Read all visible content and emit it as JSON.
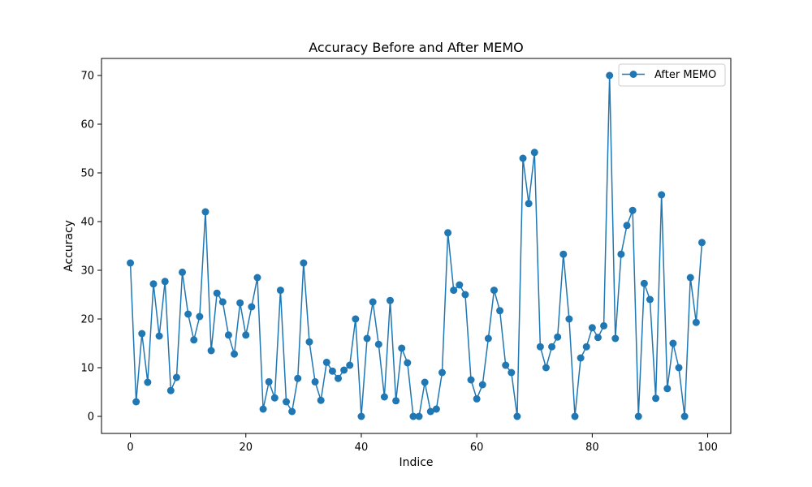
{
  "chart_data": {
    "type": "line",
    "title": "Accuracy Before and After MEMO",
    "xlabel": "Indice",
    "ylabel": "Accuracy",
    "xlim": [
      -5,
      104
    ],
    "ylim": [
      -3.5,
      73.5
    ],
    "xticks": [
      0,
      20,
      40,
      60,
      80,
      100
    ],
    "yticks": [
      0,
      10,
      20,
      30,
      40,
      50,
      60,
      70
    ],
    "grid": false,
    "legend_position": "top-right",
    "series": [
      {
        "name": "After MEMO",
        "color": "#1f77b4",
        "marker": "circle",
        "x": [
          0,
          1,
          2,
          3,
          4,
          5,
          6,
          7,
          8,
          9,
          10,
          11,
          12,
          13,
          14,
          15,
          16,
          17,
          18,
          19,
          20,
          21,
          22,
          23,
          24,
          25,
          26,
          27,
          28,
          29,
          30,
          31,
          32,
          33,
          34,
          35,
          36,
          37,
          38,
          39,
          40,
          41,
          42,
          43,
          44,
          45,
          46,
          47,
          48,
          49,
          50,
          51,
          52,
          53,
          54,
          55,
          56,
          57,
          58,
          59,
          60,
          61,
          62,
          63,
          64,
          65,
          66,
          67,
          68,
          69,
          70,
          71,
          72,
          73,
          74,
          75,
          76,
          77,
          78,
          79,
          80,
          81,
          82,
          83,
          84,
          85,
          86,
          87,
          88,
          89,
          90,
          91,
          92,
          93,
          94,
          95,
          96,
          97,
          98,
          99
        ],
        "values": [
          31.5,
          3.0,
          17.0,
          7.0,
          27.2,
          16.5,
          27.7,
          5.3,
          8.0,
          29.6,
          21.0,
          15.7,
          20.5,
          42.0,
          13.5,
          25.3,
          23.5,
          16.7,
          12.8,
          23.3,
          16.7,
          22.5,
          28.5,
          1.5,
          7.1,
          3.8,
          25.9,
          3.0,
          1.0,
          7.8,
          31.5,
          15.3,
          7.1,
          3.3,
          11.1,
          9.3,
          7.8,
          9.5,
          10.5,
          20.0,
          0.0,
          16.0,
          23.5,
          14.8,
          4.0,
          23.8,
          3.2,
          14.0,
          11.0,
          0.0,
          0.0,
          7.0,
          1.0,
          1.5,
          9.0,
          37.7,
          25.9,
          27.0,
          25.0,
          7.5,
          3.6,
          6.5,
          16.0,
          25.9,
          21.7,
          10.5,
          9.0,
          0.0,
          53.0,
          43.7,
          54.2,
          14.3,
          10.0,
          14.3,
          16.3,
          33.3,
          20.0,
          0.0,
          12.0,
          14.3,
          18.2,
          16.2,
          18.6,
          70.0,
          16.0,
          33.3,
          39.2,
          42.3,
          0.0,
          27.3,
          24.0,
          3.7,
          45.5,
          5.7,
          15.0,
          10.0,
          0.0,
          28.5,
          19.3,
          35.7
        ]
      }
    ]
  }
}
